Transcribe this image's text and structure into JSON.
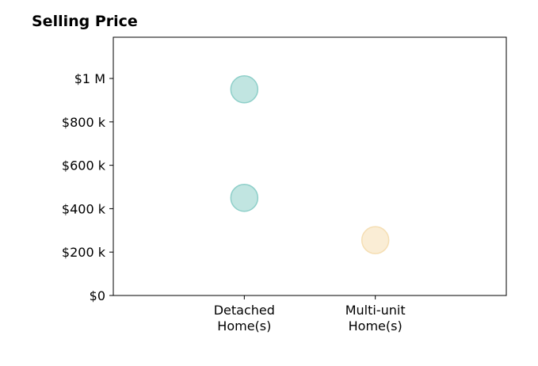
{
  "chart_data": {
    "type": "scatter",
    "title": "Selling Price",
    "xlabel": "",
    "ylabel": "",
    "categories": [
      [
        "Detached",
        "Home(s)"
      ],
      [
        "Multi-unit",
        "Home(s)"
      ]
    ],
    "xlim": [
      -1,
      2
    ],
    "ylim": [
      0,
      1190000
    ],
    "y_ticks": [
      {
        "value": 0,
        "label": "$0"
      },
      {
        "value": 200000,
        "label": "$200 k"
      },
      {
        "value": 400000,
        "label": "$400 k"
      },
      {
        "value": 600000,
        "label": "$600 k"
      },
      {
        "value": 800000,
        "label": "$800 k"
      },
      {
        "value": 1000000,
        "label": "$1 M"
      }
    ],
    "points": [
      {
        "category": 0,
        "y": 950000,
        "color": "#8ecfc9"
      },
      {
        "category": 0,
        "y": 450000,
        "color": "#8ecfc9"
      },
      {
        "category": 1,
        "y": 255000,
        "color": "#f5deb3"
      }
    ],
    "grid": false,
    "legend": "none"
  }
}
